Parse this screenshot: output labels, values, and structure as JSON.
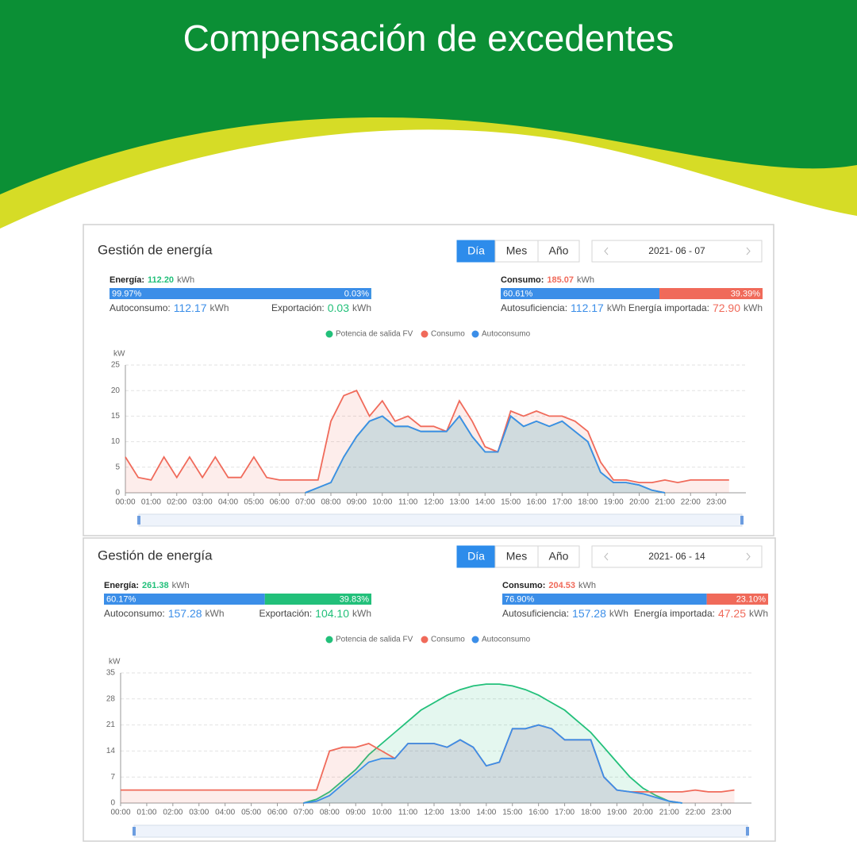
{
  "title": "Compensación de excedentes",
  "panels": [
    {
      "heading": "Gestión de energía",
      "tabs": [
        "Día",
        "Mes",
        "Año"
      ],
      "date": "2021- 06 - 07",
      "unit": "kWh",
      "energy": {
        "label": "Energía:",
        "value": "112.20"
      },
      "energy_bar": {
        "values": [
          99.97,
          0.03
        ],
        "value_labels": [
          "99.97%",
          "0.03%"
        ],
        "colors": [
          "#3b8ee8",
          "#22c07a"
        ]
      },
      "self_consumption": {
        "label": "Autoconsumo:",
        "value": "112.17"
      },
      "export": {
        "label": "Exportación:",
        "value": "0.03"
      },
      "consumption": {
        "label": "Consumo:",
        "value": "185.07"
      },
      "consumption_bar": {
        "values": [
          60.61,
          39.39
        ],
        "value_labels": [
          "60.61%",
          "39.39%"
        ],
        "colors": [
          "#3b8ee8",
          "#f06a5a"
        ]
      },
      "self_sufficiency": {
        "label": "Autosuficiencia:",
        "value": "112.17"
      },
      "imported": {
        "label": "Energía importada:",
        "value": "72.90"
      }
    },
    {
      "heading": "Gestión de energía",
      "tabs": [
        "Día",
        "Mes",
        "Año"
      ],
      "date": "2021- 06 - 14",
      "unit": "kWh",
      "energy": {
        "label": "Energía:",
        "value": "261.38"
      },
      "energy_bar": {
        "values": [
          60.17,
          39.83
        ],
        "value_labels": [
          "60.17%",
          "39.83%"
        ],
        "colors": [
          "#3b8ee8",
          "#22c07a"
        ]
      },
      "self_consumption": {
        "label": "Autoconsumo:",
        "value": "157.28"
      },
      "export": {
        "label": "Exportación:",
        "value": "104.10"
      },
      "consumption": {
        "label": "Consumo:",
        "value": "204.53"
      },
      "consumption_bar": {
        "values": [
          76.9,
          23.1
        ],
        "value_labels": [
          "76.90%",
          "23.10%"
        ],
        "colors": [
          "#3b8ee8",
          "#f06a5a"
        ]
      },
      "self_sufficiency": {
        "label": "Autosuficiencia:",
        "value": "157.28"
      },
      "imported": {
        "label": "Energía importada:",
        "value": "47.25"
      }
    }
  ],
  "chart_data": [
    {
      "type": "line",
      "y_label": "kW",
      "grid": true,
      "x": [
        0,
        0.5,
        1,
        1.5,
        2,
        2.5,
        3,
        3.5,
        4,
        4.5,
        5,
        5.5,
        6,
        6.5,
        7,
        7.5,
        8,
        8.5,
        9,
        9.5,
        10,
        10.5,
        11,
        11.5,
        12,
        12.5,
        13,
        13.5,
        14,
        14.5,
        15,
        15.5,
        16,
        16.5,
        17,
        17.5,
        18,
        18.5,
        19,
        19.5,
        20,
        20.5,
        21,
        21.5,
        22,
        22.5,
        23,
        23.5
      ],
      "xlim": [
        0,
        24
      ],
      "xticks": [
        {
          "value": 0,
          "label": "00:00"
        },
        {
          "value": 1,
          "label": "01:00"
        },
        {
          "value": 2,
          "label": "02:00"
        },
        {
          "value": 3,
          "label": "03:00"
        },
        {
          "value": 4,
          "label": "04:00"
        },
        {
          "value": 5,
          "label": "05:00"
        },
        {
          "value": 6,
          "label": "06:00"
        },
        {
          "value": 7,
          "label": "07:00"
        },
        {
          "value": 8,
          "label": "08:00"
        },
        {
          "value": 9,
          "label": "09:00"
        },
        {
          "value": 10,
          "label": "10:00"
        },
        {
          "value": 11,
          "label": "11:00"
        },
        {
          "value": 12,
          "label": "12:00"
        },
        {
          "value": 13,
          "label": "13:00"
        },
        {
          "value": 14,
          "label": "14:00"
        },
        {
          "value": 15,
          "label": "15:00"
        },
        {
          "value": 16,
          "label": "16:00"
        },
        {
          "value": 17,
          "label": "17:00"
        },
        {
          "value": 18,
          "label": "18:00"
        },
        {
          "value": 19,
          "label": "19:00"
        },
        {
          "value": 20,
          "label": "20:00"
        },
        {
          "value": 21,
          "label": "21:00"
        },
        {
          "value": 22,
          "label": "22:00"
        },
        {
          "value": 23,
          "label": "23:00"
        }
      ],
      "ylim": [
        0,
        25
      ],
      "yticks": [
        0,
        5,
        10,
        15,
        20,
        25
      ],
      "series": [
        {
          "name": "Potencia de salida FV",
          "color": "#22c07a",
          "values": [
            null,
            null,
            null,
            null,
            null,
            null,
            null,
            null,
            null,
            null,
            null,
            null,
            null,
            null,
            0,
            1,
            2,
            7,
            11,
            14,
            15,
            13,
            13,
            12,
            12,
            12,
            15,
            11,
            8,
            8,
            15,
            13,
            14,
            13,
            14,
            12,
            10,
            4,
            2,
            2,
            1.5,
            0.5,
            0,
            null,
            null,
            null,
            null,
            null
          ]
        },
        {
          "name": "Consumo",
          "color": "#f06a5a",
          "values": [
            7,
            3,
            2.5,
            7,
            3,
            7,
            3,
            7,
            3,
            3,
            7,
            3,
            2.5,
            2.5,
            2.5,
            2.5,
            14,
            19,
            20,
            15,
            18,
            14,
            15,
            13,
            13,
            12,
            18,
            14,
            9,
            8,
            16,
            15,
            16,
            15,
            15,
            14,
            12,
            6,
            2.5,
            2.5,
            2,
            2,
            2.5,
            2,
            2.5,
            2.5,
            2.5,
            2.5
          ]
        },
        {
          "name": "Autoconsumo",
          "color": "#3b8ee8",
          "values": [
            null,
            null,
            null,
            null,
            null,
            null,
            null,
            null,
            null,
            null,
            null,
            null,
            null,
            null,
            0,
            1,
            2,
            7,
            11,
            14,
            15,
            13,
            13,
            12,
            12,
            12,
            15,
            11,
            8,
            8,
            15,
            13,
            14,
            13,
            14,
            12,
            10,
            4,
            2,
            2,
            1.5,
            0.5,
            0,
            null,
            null,
            null,
            null,
            null
          ]
        }
      ]
    },
    {
      "type": "line",
      "y_label": "kW",
      "grid": true,
      "x": [
        0,
        0.5,
        1,
        1.5,
        2,
        2.5,
        3,
        3.5,
        4,
        4.5,
        5,
        5.5,
        6,
        6.5,
        7,
        7.5,
        8,
        8.5,
        9,
        9.5,
        10,
        10.5,
        11,
        11.5,
        12,
        12.5,
        13,
        13.5,
        14,
        14.5,
        15,
        15.5,
        16,
        16.5,
        17,
        17.5,
        18,
        18.5,
        19,
        19.5,
        20,
        20.5,
        21,
        21.5,
        22,
        22.5,
        23,
        23.5
      ],
      "xlim": [
        0,
        24
      ],
      "xticks": [
        {
          "value": 0,
          "label": "00:00"
        },
        {
          "value": 1,
          "label": "01:00"
        },
        {
          "value": 2,
          "label": "02:00"
        },
        {
          "value": 3,
          "label": "03:00"
        },
        {
          "value": 4,
          "label": "04:00"
        },
        {
          "value": 5,
          "label": "05:00"
        },
        {
          "value": 6,
          "label": "06:00"
        },
        {
          "value": 7,
          "label": "07:00"
        },
        {
          "value": 8,
          "label": "08:00"
        },
        {
          "value": 9,
          "label": "09:00"
        },
        {
          "value": 10,
          "label": "10:00"
        },
        {
          "value": 11,
          "label": "11:00"
        },
        {
          "value": 12,
          "label": "12:00"
        },
        {
          "value": 13,
          "label": "13:00"
        },
        {
          "value": 14,
          "label": "14:00"
        },
        {
          "value": 15,
          "label": "15:00"
        },
        {
          "value": 16,
          "label": "16:00"
        },
        {
          "value": 17,
          "label": "17:00"
        },
        {
          "value": 18,
          "label": "18:00"
        },
        {
          "value": 19,
          "label": "19:00"
        },
        {
          "value": 20,
          "label": "20:00"
        },
        {
          "value": 21,
          "label": "21:00"
        },
        {
          "value": 22,
          "label": "22:00"
        },
        {
          "value": 23,
          "label": "23:00"
        }
      ],
      "ylim": [
        0,
        35
      ],
      "yticks": [
        0,
        7,
        14,
        21,
        28,
        35
      ],
      "series": [
        {
          "name": "Potencia de salida FV",
          "color": "#22c07a",
          "values": [
            null,
            null,
            null,
            null,
            null,
            null,
            null,
            null,
            null,
            null,
            null,
            null,
            null,
            null,
            0,
            1,
            3,
            6,
            9,
            13,
            16,
            19,
            22,
            25,
            27,
            29,
            30.5,
            31.5,
            32,
            32,
            31.5,
            30.5,
            29,
            27,
            25,
            22,
            19,
            15,
            11,
            7,
            4,
            2,
            0.5,
            0,
            null,
            null,
            null,
            null
          ]
        },
        {
          "name": "Consumo",
          "color": "#f06a5a",
          "values": [
            3.5,
            3.5,
            3.5,
            3.5,
            3.5,
            3.5,
            3.5,
            3.5,
            3.5,
            3.5,
            3.5,
            3.5,
            3.5,
            3.5,
            3.5,
            3.5,
            14,
            15,
            15,
            16,
            14,
            12,
            16,
            16,
            16,
            15,
            17,
            15,
            10,
            11,
            20,
            20,
            21,
            20,
            17,
            17,
            17,
            7,
            3.5,
            3,
            3,
            3,
            3,
            3,
            3.5,
            3,
            3,
            3.5
          ]
        },
        {
          "name": "Autoconsumo",
          "color": "#3b8ee8",
          "values": [
            null,
            null,
            null,
            null,
            null,
            null,
            null,
            null,
            null,
            null,
            null,
            null,
            null,
            null,
            0,
            0.5,
            2,
            5,
            8,
            11,
            12,
            12,
            16,
            16,
            16,
            15,
            17,
            15,
            10,
            11,
            20,
            20,
            21,
            20,
            17,
            17,
            17,
            7,
            3.5,
            3,
            2.5,
            1.5,
            0.5,
            0,
            null,
            null,
            null,
            null
          ]
        }
      ]
    }
  ]
}
